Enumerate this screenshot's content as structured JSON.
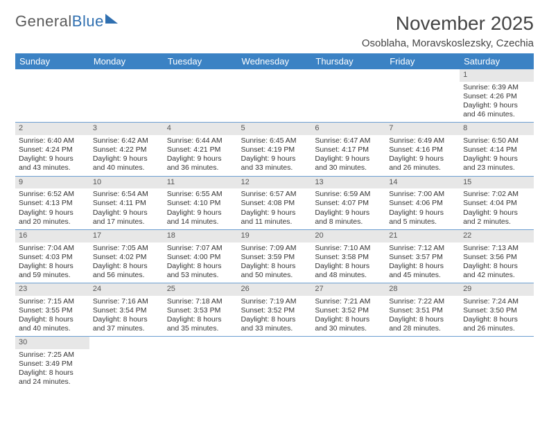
{
  "logo": {
    "word1": "General",
    "word2": "Blue"
  },
  "title": "November 2025",
  "location": "Osoblaha, Moravskoslezsky, Czechia",
  "headers": [
    "Sunday",
    "Monday",
    "Tuesday",
    "Wednesday",
    "Thursday",
    "Friday",
    "Saturday"
  ],
  "colors": {
    "header_bg": "#3b82c4",
    "header_text": "#ffffff",
    "daynum_bg": "#e7e7e7",
    "row_divider": "#6a9dd0",
    "logo_gray": "#5a5a5a",
    "logo_blue": "#2f6fb0"
  },
  "weeks": [
    [
      {
        "blank": true
      },
      {
        "blank": true
      },
      {
        "blank": true
      },
      {
        "blank": true
      },
      {
        "blank": true
      },
      {
        "blank": true
      },
      {
        "n": "1",
        "sr": "Sunrise: 6:39 AM",
        "ss": "Sunset: 4:26 PM",
        "dl": "Daylight: 9 hours and 46 minutes."
      }
    ],
    [
      {
        "n": "2",
        "sr": "Sunrise: 6:40 AM",
        "ss": "Sunset: 4:24 PM",
        "dl": "Daylight: 9 hours and 43 minutes."
      },
      {
        "n": "3",
        "sr": "Sunrise: 6:42 AM",
        "ss": "Sunset: 4:22 PM",
        "dl": "Daylight: 9 hours and 40 minutes."
      },
      {
        "n": "4",
        "sr": "Sunrise: 6:44 AM",
        "ss": "Sunset: 4:21 PM",
        "dl": "Daylight: 9 hours and 36 minutes."
      },
      {
        "n": "5",
        "sr": "Sunrise: 6:45 AM",
        "ss": "Sunset: 4:19 PM",
        "dl": "Daylight: 9 hours and 33 minutes."
      },
      {
        "n": "6",
        "sr": "Sunrise: 6:47 AM",
        "ss": "Sunset: 4:17 PM",
        "dl": "Daylight: 9 hours and 30 minutes."
      },
      {
        "n": "7",
        "sr": "Sunrise: 6:49 AM",
        "ss": "Sunset: 4:16 PM",
        "dl": "Daylight: 9 hours and 26 minutes."
      },
      {
        "n": "8",
        "sr": "Sunrise: 6:50 AM",
        "ss": "Sunset: 4:14 PM",
        "dl": "Daylight: 9 hours and 23 minutes."
      }
    ],
    [
      {
        "n": "9",
        "sr": "Sunrise: 6:52 AM",
        "ss": "Sunset: 4:13 PM",
        "dl": "Daylight: 9 hours and 20 minutes."
      },
      {
        "n": "10",
        "sr": "Sunrise: 6:54 AM",
        "ss": "Sunset: 4:11 PM",
        "dl": "Daylight: 9 hours and 17 minutes."
      },
      {
        "n": "11",
        "sr": "Sunrise: 6:55 AM",
        "ss": "Sunset: 4:10 PM",
        "dl": "Daylight: 9 hours and 14 minutes."
      },
      {
        "n": "12",
        "sr": "Sunrise: 6:57 AM",
        "ss": "Sunset: 4:08 PM",
        "dl": "Daylight: 9 hours and 11 minutes."
      },
      {
        "n": "13",
        "sr": "Sunrise: 6:59 AM",
        "ss": "Sunset: 4:07 PM",
        "dl": "Daylight: 9 hours and 8 minutes."
      },
      {
        "n": "14",
        "sr": "Sunrise: 7:00 AM",
        "ss": "Sunset: 4:06 PM",
        "dl": "Daylight: 9 hours and 5 minutes."
      },
      {
        "n": "15",
        "sr": "Sunrise: 7:02 AM",
        "ss": "Sunset: 4:04 PM",
        "dl": "Daylight: 9 hours and 2 minutes."
      }
    ],
    [
      {
        "n": "16",
        "sr": "Sunrise: 7:04 AM",
        "ss": "Sunset: 4:03 PM",
        "dl": "Daylight: 8 hours and 59 minutes."
      },
      {
        "n": "17",
        "sr": "Sunrise: 7:05 AM",
        "ss": "Sunset: 4:02 PM",
        "dl": "Daylight: 8 hours and 56 minutes."
      },
      {
        "n": "18",
        "sr": "Sunrise: 7:07 AM",
        "ss": "Sunset: 4:00 PM",
        "dl": "Daylight: 8 hours and 53 minutes."
      },
      {
        "n": "19",
        "sr": "Sunrise: 7:09 AM",
        "ss": "Sunset: 3:59 PM",
        "dl": "Daylight: 8 hours and 50 minutes."
      },
      {
        "n": "20",
        "sr": "Sunrise: 7:10 AM",
        "ss": "Sunset: 3:58 PM",
        "dl": "Daylight: 8 hours and 48 minutes."
      },
      {
        "n": "21",
        "sr": "Sunrise: 7:12 AM",
        "ss": "Sunset: 3:57 PM",
        "dl": "Daylight: 8 hours and 45 minutes."
      },
      {
        "n": "22",
        "sr": "Sunrise: 7:13 AM",
        "ss": "Sunset: 3:56 PM",
        "dl": "Daylight: 8 hours and 42 minutes."
      }
    ],
    [
      {
        "n": "23",
        "sr": "Sunrise: 7:15 AM",
        "ss": "Sunset: 3:55 PM",
        "dl": "Daylight: 8 hours and 40 minutes."
      },
      {
        "n": "24",
        "sr": "Sunrise: 7:16 AM",
        "ss": "Sunset: 3:54 PM",
        "dl": "Daylight: 8 hours and 37 minutes."
      },
      {
        "n": "25",
        "sr": "Sunrise: 7:18 AM",
        "ss": "Sunset: 3:53 PM",
        "dl": "Daylight: 8 hours and 35 minutes."
      },
      {
        "n": "26",
        "sr": "Sunrise: 7:19 AM",
        "ss": "Sunset: 3:52 PM",
        "dl": "Daylight: 8 hours and 33 minutes."
      },
      {
        "n": "27",
        "sr": "Sunrise: 7:21 AM",
        "ss": "Sunset: 3:52 PM",
        "dl": "Daylight: 8 hours and 30 minutes."
      },
      {
        "n": "28",
        "sr": "Sunrise: 7:22 AM",
        "ss": "Sunset: 3:51 PM",
        "dl": "Daylight: 8 hours and 28 minutes."
      },
      {
        "n": "29",
        "sr": "Sunrise: 7:24 AM",
        "ss": "Sunset: 3:50 PM",
        "dl": "Daylight: 8 hours and 26 minutes."
      }
    ],
    [
      {
        "n": "30",
        "sr": "Sunrise: 7:25 AM",
        "ss": "Sunset: 3:49 PM",
        "dl": "Daylight: 8 hours and 24 minutes."
      },
      {
        "blank_after": true
      },
      {
        "blank_after": true
      },
      {
        "blank_after": true
      },
      {
        "blank_after": true
      },
      {
        "blank_after": true
      },
      {
        "blank_after": true
      }
    ]
  ]
}
